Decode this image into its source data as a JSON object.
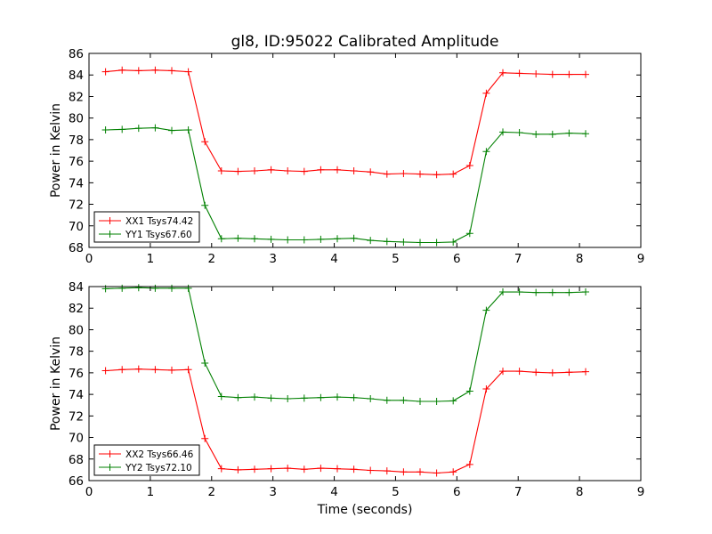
{
  "figure": {
    "title": "gl8, ID:95022 Calibrated Amplitude"
  },
  "chart_data": [
    {
      "type": "line",
      "title": "gl8, ID:95022 Calibrated Amplitude",
      "xlabel": "",
      "ylabel": "Power in Kelvin",
      "xlim": [
        0,
        9
      ],
      "ylim": [
        68,
        86
      ],
      "xticks": [
        0,
        1,
        2,
        3,
        4,
        5,
        6,
        7,
        8,
        9
      ],
      "yticks": [
        68,
        70,
        72,
        74,
        76,
        78,
        80,
        82,
        84,
        86
      ],
      "grid": false,
      "legend": "lower-left",
      "x": [
        0.27,
        0.54,
        0.81,
        1.08,
        1.35,
        1.62,
        1.89,
        2.16,
        2.43,
        2.7,
        2.97,
        3.24,
        3.51,
        3.78,
        4.05,
        4.32,
        4.59,
        4.86,
        5.13,
        5.4,
        5.67,
        5.94,
        6.21,
        6.48,
        6.75,
        7.02,
        7.29,
        7.56,
        7.83,
        8.1
      ],
      "series": [
        {
          "name": "XX1 Tsys74.42",
          "color": "#ff0000",
          "values": [
            84.3,
            84.45,
            84.4,
            84.45,
            84.4,
            84.3,
            77.8,
            75.1,
            75.05,
            75.1,
            75.2,
            75.1,
            75.05,
            75.2,
            75.2,
            75.1,
            75.0,
            74.8,
            74.85,
            74.8,
            74.75,
            74.8,
            75.6,
            82.3,
            84.2,
            84.15,
            84.1,
            84.05,
            84.05,
            84.05
          ]
        },
        {
          "name": "YY1 Tsys67.60",
          "color": "#008000",
          "values": [
            78.9,
            78.95,
            79.05,
            79.1,
            78.85,
            78.9,
            71.9,
            68.8,
            68.85,
            68.8,
            68.75,
            68.7,
            68.7,
            68.75,
            68.8,
            68.85,
            68.65,
            68.55,
            68.5,
            68.45,
            68.45,
            68.5,
            69.3,
            76.9,
            78.7,
            78.65,
            78.5,
            78.5,
            78.6,
            78.55
          ]
        }
      ]
    },
    {
      "type": "line",
      "title": "",
      "xlabel": "Time (seconds)",
      "ylabel": "Power in Kelvin",
      "xlim": [
        0,
        9
      ],
      "ylim": [
        66,
        84
      ],
      "xticks": [
        0,
        1,
        2,
        3,
        4,
        5,
        6,
        7,
        8,
        9
      ],
      "yticks": [
        66,
        68,
        70,
        72,
        74,
        76,
        78,
        80,
        82,
        84
      ],
      "grid": false,
      "legend": "lower-left",
      "x": [
        0.27,
        0.54,
        0.81,
        1.08,
        1.35,
        1.62,
        1.89,
        2.16,
        2.43,
        2.7,
        2.97,
        3.24,
        3.51,
        3.78,
        4.05,
        4.32,
        4.59,
        4.86,
        5.13,
        5.4,
        5.67,
        5.94,
        6.21,
        6.48,
        6.75,
        7.02,
        7.29,
        7.56,
        7.83,
        8.1
      ],
      "series": [
        {
          "name": "XX2 Tsys66.46",
          "color": "#ff0000",
          "values": [
            76.2,
            76.3,
            76.35,
            76.3,
            76.25,
            76.3,
            69.9,
            67.1,
            67.0,
            67.05,
            67.1,
            67.15,
            67.05,
            67.15,
            67.1,
            67.05,
            66.95,
            66.9,
            66.8,
            66.8,
            66.7,
            66.8,
            67.5,
            74.5,
            76.15,
            76.15,
            76.05,
            76.0,
            76.05,
            76.1
          ]
        },
        {
          "name": "YY2 Tsys72.10",
          "color": "#008000",
          "values": [
            83.8,
            83.85,
            83.9,
            83.85,
            83.85,
            83.85,
            76.9,
            73.8,
            73.7,
            73.75,
            73.65,
            73.6,
            73.65,
            73.7,
            73.75,
            73.7,
            73.6,
            73.45,
            73.45,
            73.35,
            73.35,
            73.4,
            74.3,
            81.8,
            83.5,
            83.5,
            83.45,
            83.45,
            83.45,
            83.5
          ]
        }
      ]
    }
  ]
}
